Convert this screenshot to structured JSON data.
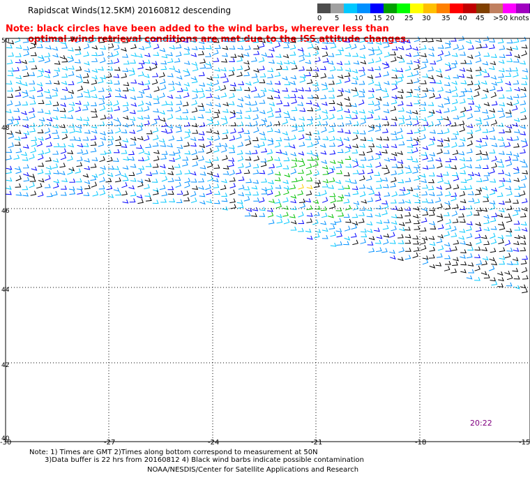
{
  "title": "Rapidscat Winds(12.5KM) 20160812 descending",
  "note_line1": "Note: black circles have been added to the wind barbs, wherever less than",
  "note_line2": "optimal wind retrieval conditions are met due to the ISS attitude changes.",
  "colorbar": {
    "colors": [
      "#4d4d4d",
      "#a0a0a0",
      "#00c8ff",
      "#0090ff",
      "#0000ff",
      "#00a000",
      "#00ff00",
      "#ffff00",
      "#ffc000",
      "#ff8000",
      "#ff0000",
      "#c00000",
      "#804000",
      "#c08060",
      "#ff00ff",
      "#a000c0",
      "#400080"
    ],
    "labels": [
      "0",
      "5",
      "10",
      "15",
      "20",
      "25",
      "30",
      "35",
      "40",
      "45",
      ">50 knots"
    ]
  },
  "axes": {
    "x_ticks": [
      "-30",
      "-27",
      "-24",
      "-21",
      "-18",
      "-15"
    ],
    "y_ticks": [
      "50",
      "48",
      "46",
      "44",
      "42",
      "40"
    ]
  },
  "time_label": "20:22",
  "footnote_line1": "Note: 1) Times are GMT 2)Times along bottom correspond to measurement at 50N",
  "footnote_line2": "3)Data buffer is 22 hrs from 20160812 4) Black wind barbs indicate possible contamination",
  "credit": "NOAA/NESDIS/Center for Satellite Applications and Research"
}
